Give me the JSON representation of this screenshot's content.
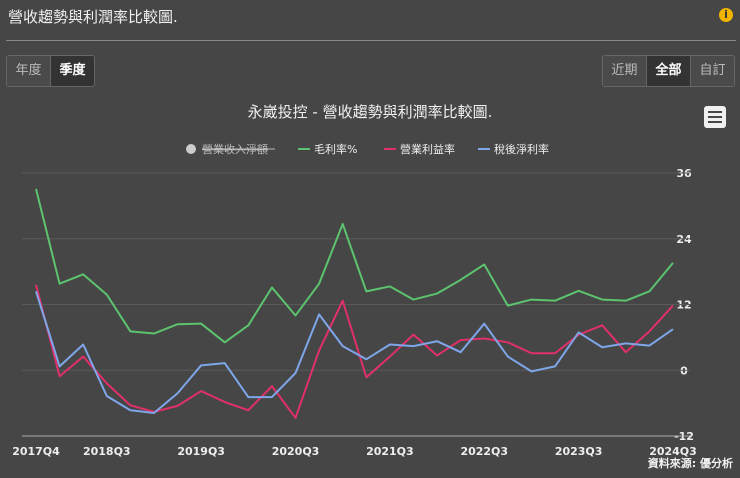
{
  "ui": {
    "header": "營收趨勢與利潤率比較圖.",
    "info_icon": "i",
    "period_buttons": [
      "年度",
      "季度"
    ],
    "active_period": 1,
    "range_buttons": [
      "近期",
      "全部",
      "自訂"
    ],
    "active_range": 1,
    "source": "資料來源: 優分析"
  },
  "chart_data": {
    "type": "line",
    "title": "永崴投控 - 營收趨勢與利潤率比較圖.",
    "hidden_series": "營業收入淨額",
    "categories": [
      "2017Q4",
      null,
      null,
      "2018Q3",
      null,
      null,
      null,
      "2019Q3",
      null,
      null,
      null,
      "2020Q3",
      null,
      null,
      null,
      "2021Q3",
      null,
      null,
      null,
      "2022Q3",
      null,
      null,
      null,
      "2023Q3",
      null,
      null,
      null,
      "2024Q3"
    ],
    "series": [
      {
        "name": "毛利率%",
        "color": "#5cc46f",
        "values": [
          33.1,
          15.8,
          17.5,
          13.8,
          7.1,
          6.7,
          8.4,
          8.5,
          5.1,
          8.2,
          15.1,
          10,
          15.8,
          26.7,
          14.4,
          15.3,
          12.9,
          14,
          16.5,
          19.3,
          11.8,
          12.9,
          12.7,
          14.5,
          12.9,
          12.7,
          14.4,
          19.6
        ]
      },
      {
        "name": "營業利益率",
        "color": "#e0306a",
        "values": [
          15.6,
          -1.1,
          2.5,
          -2.4,
          -6.4,
          -7.6,
          -6.5,
          -3.8,
          -5.8,
          -7.3,
          -2.9,
          -8.7,
          3.6,
          12.7,
          -1.3,
          2.5,
          6.5,
          2.7,
          5.5,
          5.8,
          5.1,
          3.1,
          3.1,
          6.5,
          8.2,
          3.3,
          7.1,
          11.8
        ]
      },
      {
        "name": "稅後淨利率",
        "color": "#7ea6e8",
        "values": [
          14.4,
          0.7,
          4.7,
          -4.7,
          -7.3,
          -7.8,
          -4.2,
          0.9,
          1.3,
          -4.9,
          -4.9,
          -0.5,
          10.2,
          4.4,
          2,
          4.7,
          4.4,
          5.3,
          3.3,
          8.5,
          2.5,
          -0.2,
          0.7,
          6.9,
          4.2,
          4.9,
          4.5,
          7.5
        ]
      }
    ],
    "ylim": [
      -12,
      36
    ],
    "yticks": [
      -12,
      0,
      12,
      24,
      36
    ],
    "grid": true
  }
}
